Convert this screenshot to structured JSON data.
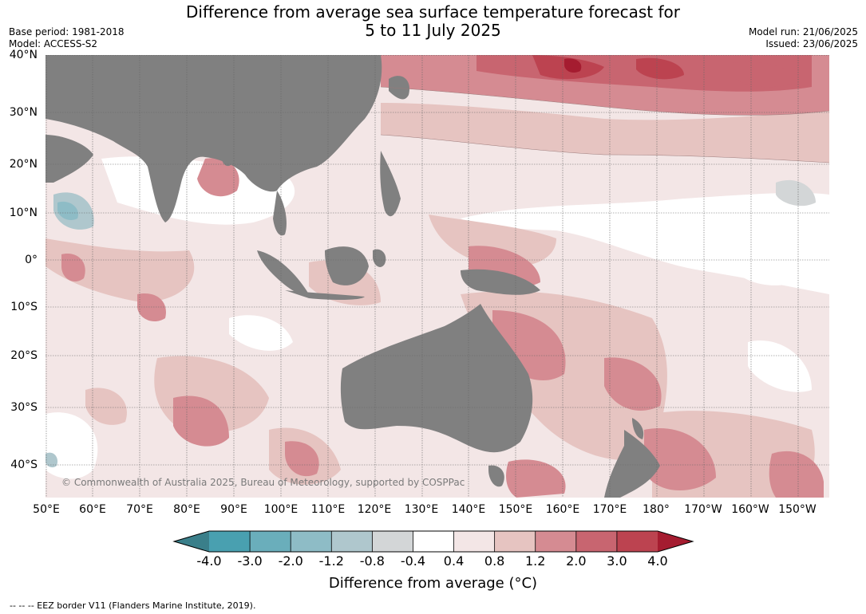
{
  "header": {
    "title_line1": "Difference from average sea surface temperature forecast for",
    "title_line2": "5 to 11 July 2025",
    "base_period": "Base period: 1981-2018",
    "model": "Model: ACCESS-S2",
    "model_run": "Model run: 21/06/2025",
    "issued": "Issued: 23/06/2025"
  },
  "axes": {
    "lat_labels": [
      "40°N",
      "30°N",
      "20°N",
      "10°N",
      "0°",
      "10°S",
      "20°S",
      "30°S",
      "40°S"
    ],
    "lon_labels": [
      "50°E",
      "60°E",
      "70°E",
      "80°E",
      "90°E",
      "100°E",
      "110°E",
      "120°E",
      "130°E",
      "140°E",
      "150°E",
      "160°E",
      "170°E",
      "180°",
      "170°W",
      "160°W",
      "150°W"
    ]
  },
  "map": {
    "copyright": "© Commonwealth of Australia 2025, Bureau of Meteorology, supported by COSPPac",
    "land_color": "#808080"
  },
  "colorbar": {
    "ticks": [
      "-4.0",
      "-3.0",
      "-2.0",
      "-1.2",
      "-0.8",
      "-0.4",
      "0.4",
      "0.8",
      "1.2",
      "2.0",
      "3.0",
      "4.0"
    ],
    "colors": [
      "#3a7f8a",
      "#49a0b0",
      "#6aaebb",
      "#8ebcc6",
      "#afc7cd",
      "#d3d6d7",
      "#ffffff",
      "#f3e6e6",
      "#e6c4c1",
      "#d58b92",
      "#c86570",
      "#bc4350",
      "#a51c30"
    ],
    "label": "Difference from average (°C)"
  },
  "footnote": "--  --  -- EEZ border V11 (Flanders Marine Institute, 2019)."
}
